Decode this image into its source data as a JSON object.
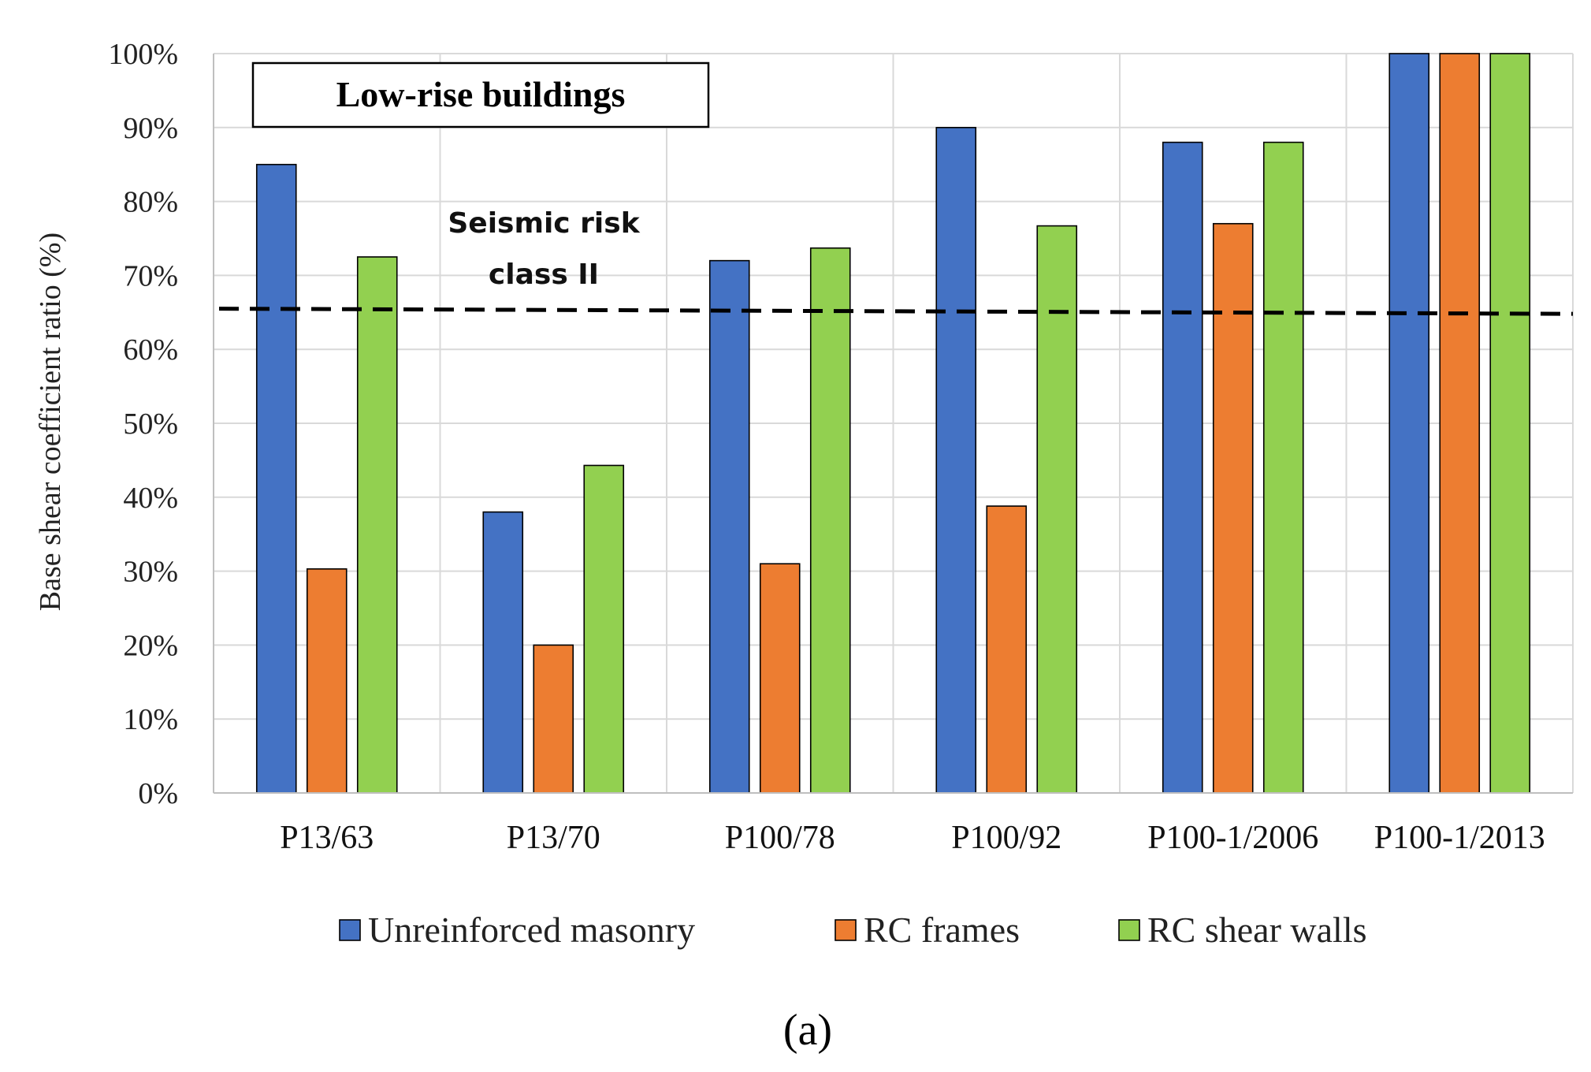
{
  "chart_data": {
    "type": "bar",
    "title_box": "Low-rise buildings",
    "categories": [
      "P13/63",
      "P13/70",
      "P100/78",
      "P100/92",
      "P100-1/2006",
      "P100-1/2013"
    ],
    "series": [
      {
        "name": "Unreinforced masonry",
        "color": "#4472C4",
        "values": [
          85,
          38,
          72,
          90,
          88,
          100
        ]
      },
      {
        "name": "RC frames",
        "color": "#ED7D31",
        "values": [
          30.3,
          20,
          31,
          38.8,
          77,
          100
        ]
      },
      {
        "name": "RC shear walls",
        "color": "#92D050",
        "values": [
          72.5,
          44.3,
          73.7,
          76.7,
          88,
          100
        ]
      }
    ],
    "ylabel": "Base shear coefficient ratio (%)",
    "ylim": [
      0,
      100
    ],
    "yticks": [
      0,
      10,
      20,
      30,
      40,
      50,
      60,
      70,
      80,
      90,
      100
    ],
    "ytick_labels": [
      "0%",
      "10%",
      "20%",
      "30%",
      "40%",
      "50%",
      "60%",
      "70%",
      "80%",
      "90%",
      "100%"
    ],
    "reference_line": {
      "label_line1": "Seismic risk",
      "label_line2": "class II",
      "value_start": 65.5,
      "value_end": 64.8,
      "style": "dashed"
    },
    "grid": true,
    "legend_position": "bottom"
  },
  "caption": "(a)"
}
